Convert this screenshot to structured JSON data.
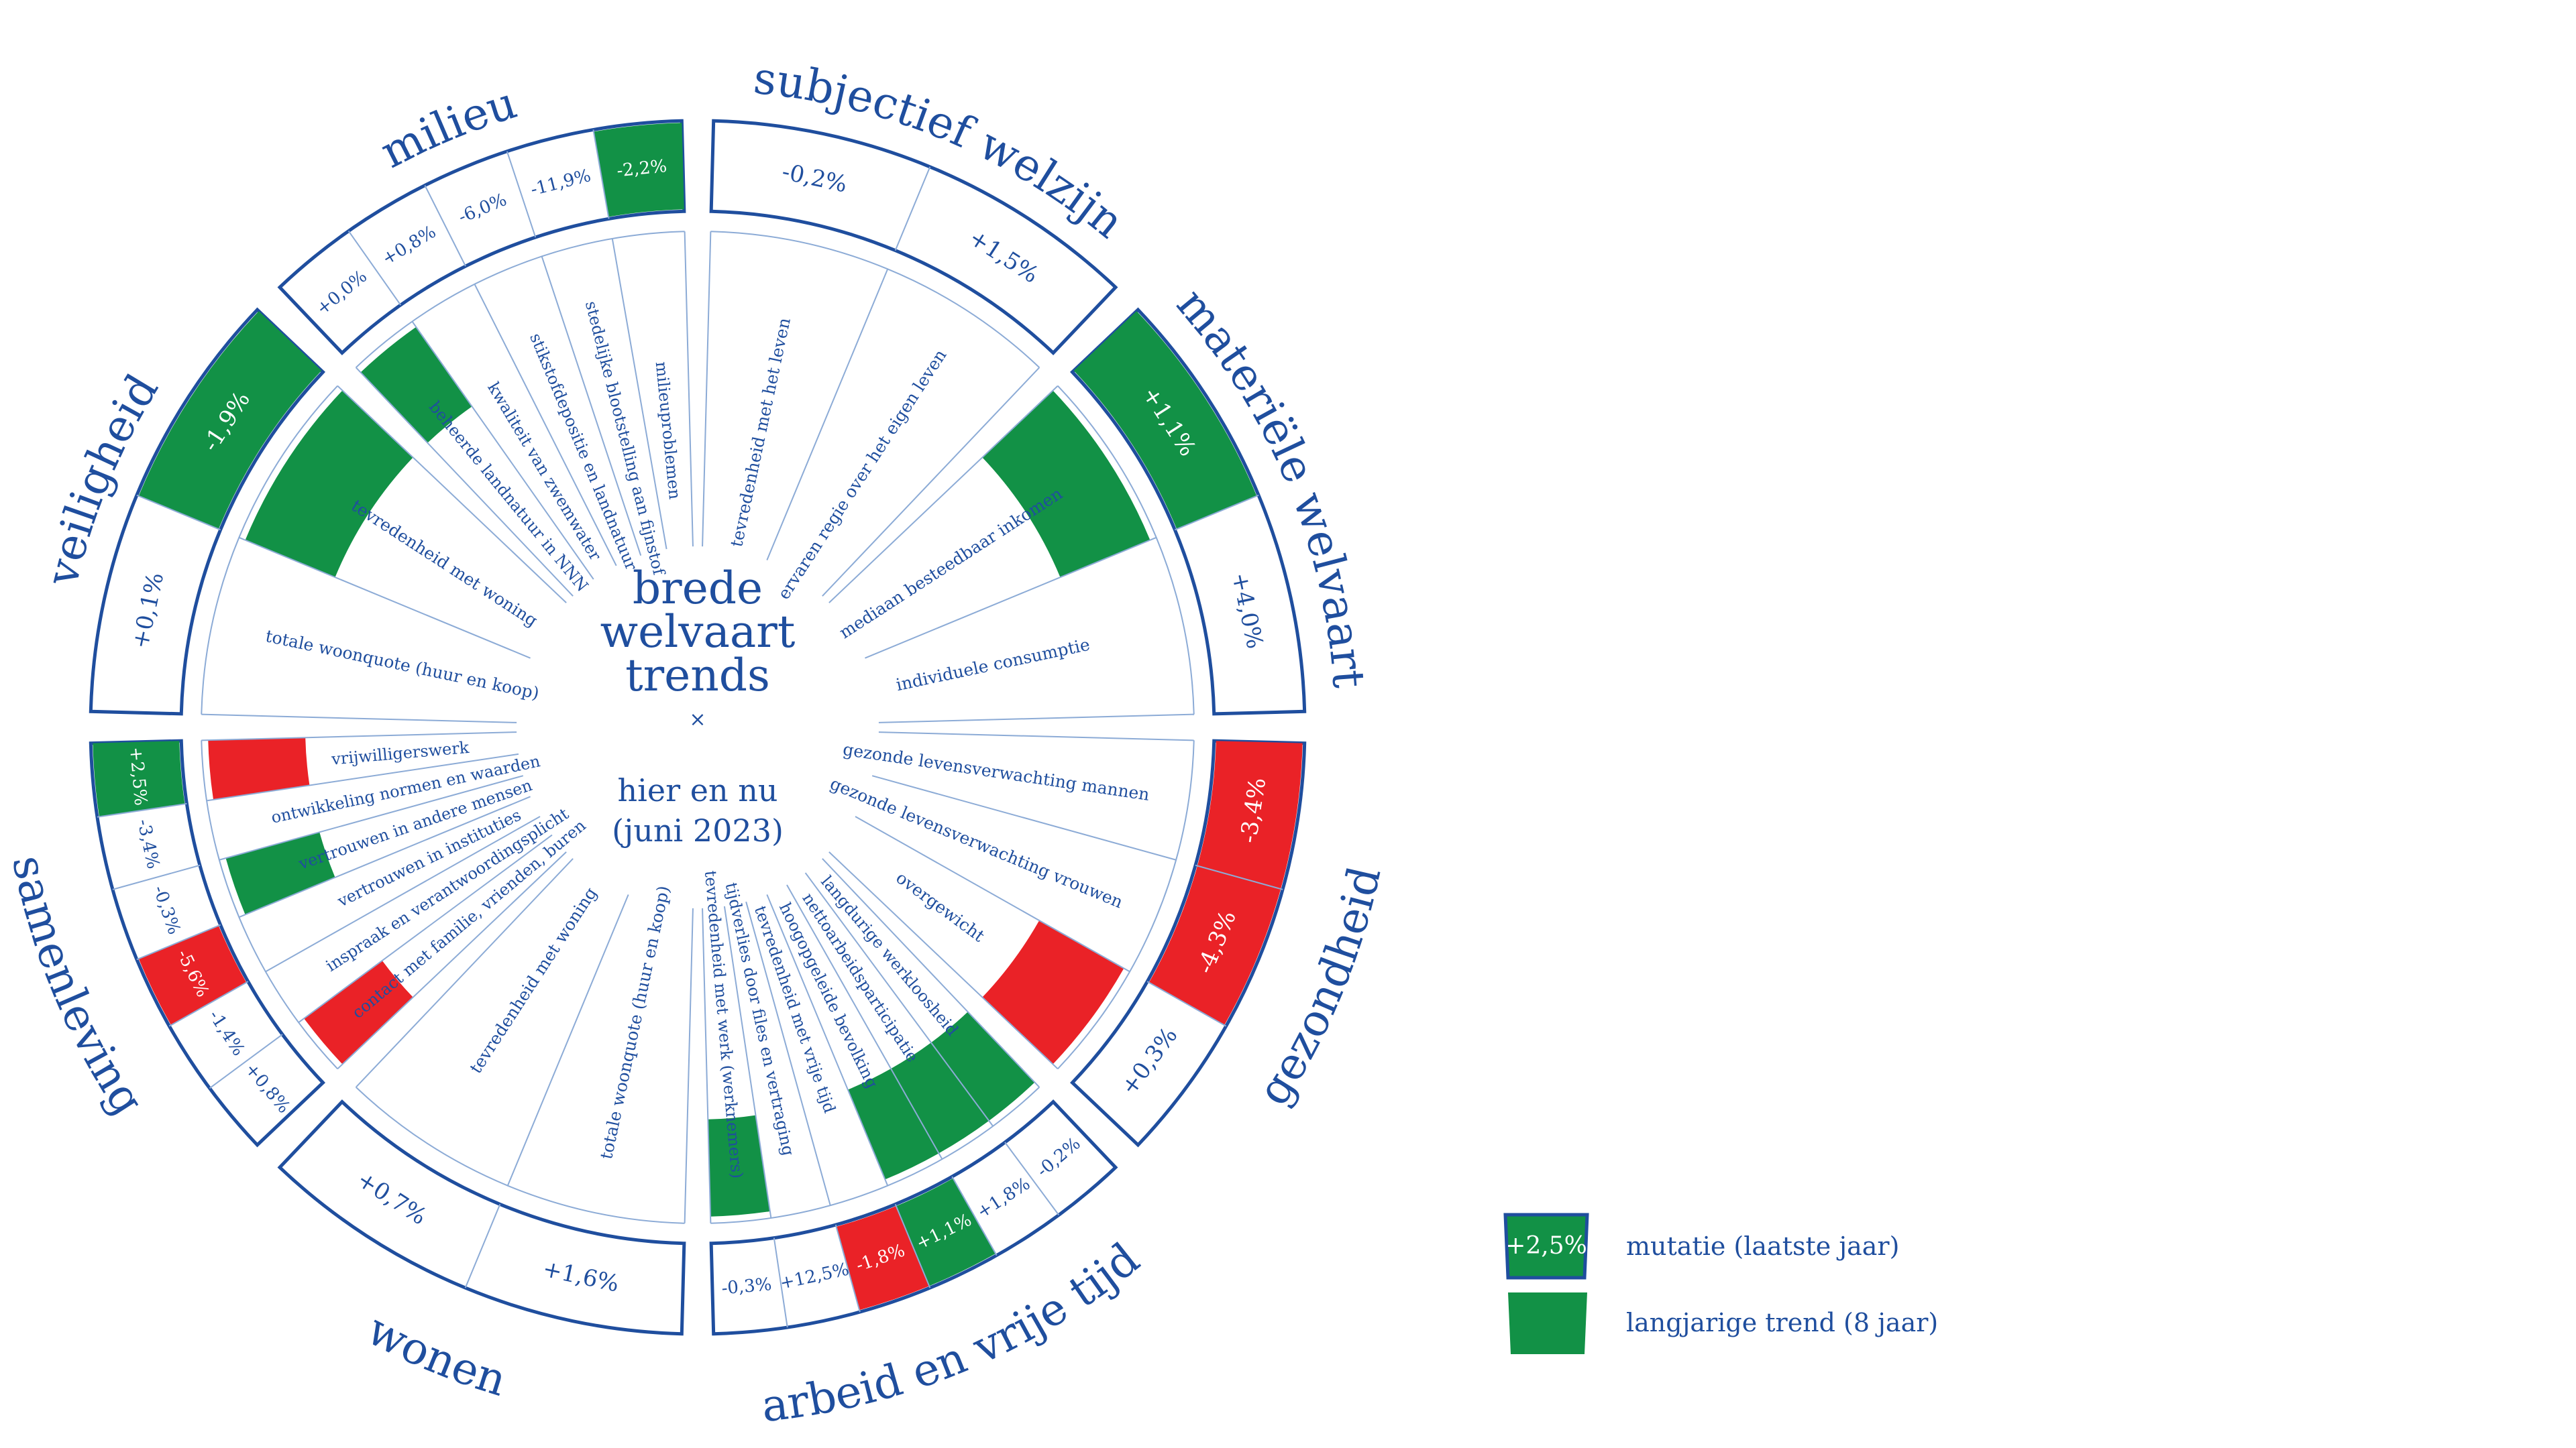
{
  "center": {
    "title": [
      "brede",
      "welvaart",
      "trends"
    ],
    "separator": "×",
    "subtitle": [
      "hier en nu",
      "(juni 2023)"
    ]
  },
  "colors": {
    "ink": "#1f4e9e",
    "green": "#129146",
    "red": "#ea2227",
    "line": "#8cabd6",
    "white": "#ffffff"
  },
  "legend": {
    "sample_value": "+2,5%",
    "mutation_label": "mutatie (laatste jaar)",
    "trend_label": "langjarige trend (8 jaar)"
  },
  "themes": [
    {
      "name": "subjectief welzijn",
      "indicators": [
        {
          "label": "tevredenheid met het leven",
          "value": "-0,2%",
          "mutation": "none",
          "trend": "none"
        },
        {
          "label": "ervaren regie over het eigen leven",
          "value": "+1,5%",
          "mutation": "none",
          "trend": "none"
        }
      ]
    },
    {
      "name": "materiële welvaart",
      "indicators": [
        {
          "label": "mediaan besteedbaar inkomen",
          "value": "+1,1%",
          "mutation": "green",
          "trend": "green"
        },
        {
          "label": "individuele consumptie",
          "value": "+4,0%",
          "mutation": "none",
          "trend": "none"
        }
      ]
    },
    {
      "name": "gezondheid",
      "indicators": [
        {
          "label": "gezonde levensverwachting mannen",
          "value": "-3,4%",
          "mutation": "red",
          "trend": "none"
        },
        {
          "label": "gezonde levensverwachting vrouwen",
          "value": "-4,3%",
          "mutation": "red",
          "trend": "none"
        },
        {
          "label": "overgewicht",
          "value": "+0,3%",
          "mutation": "none",
          "trend": "red"
        }
      ]
    },
    {
      "name": "arbeid en vrije tijd",
      "indicators": [
        {
          "label": "langdurige werkloosheid",
          "value": "-0,2%",
          "mutation": "none",
          "trend": "green"
        },
        {
          "label": "nettoarbeidsparticipatie",
          "value": "+1,8%",
          "mutation": "none",
          "trend": "green"
        },
        {
          "label": "hoogopgeleide bevolking",
          "value": "+1,1%",
          "mutation": "green",
          "trend": "green"
        },
        {
          "label": "tevredenheid met vrije tijd",
          "value": "-1,8%",
          "mutation": "red",
          "trend": "none"
        },
        {
          "label": "tijdverlies door files en vertraging",
          "value": "+12,5%",
          "mutation": "none",
          "trend": "none"
        },
        {
          "label": "tevredenheid met werk (werknemers)",
          "value": "-0,3%",
          "mutation": "none",
          "trend": "green"
        }
      ]
    },
    {
      "name": "wonen",
      "indicators": [
        {
          "label": "totale woonquote (huur en koop)",
          "value": "+1,6%",
          "mutation": "none",
          "trend": "none"
        },
        {
          "label": "tevredenheid met woning",
          "value": "+0,7%",
          "mutation": "none",
          "trend": "none"
        }
      ]
    },
    {
      "name": "samenleving",
      "indicators": [
        {
          "label": "contact met familie, vrienden, buren",
          "value": "+0,8%",
          "mutation": "none",
          "trend": "red"
        },
        {
          "label": "inspraak en verantwoordingsplicht",
          "value": "-1,4%",
          "mutation": "none",
          "trend": "none"
        },
        {
          "label": "vertrouwen in instituties",
          "value": "-5,6%",
          "mutation": "red",
          "trend": "none"
        },
        {
          "label": "vertrouwen in andere mensen",
          "value": "-0,3%",
          "mutation": "none",
          "trend": "green"
        },
        {
          "label": "ontwikkeling normen en waarden",
          "value": "-3,4%",
          "mutation": "none",
          "trend": "none"
        },
        {
          "label": "vrijwilligerswerk",
          "value": "+2,5%",
          "mutation": "green",
          "trend": "red"
        }
      ]
    },
    {
      "name": "veiligheid",
      "indicators": [
        {
          "label": "totale woonquote (huur en koop)",
          "value": "+0,1%",
          "mutation": "none",
          "trend": "none"
        },
        {
          "label": "tevredenheid met woning",
          "value": "-1,9%",
          "mutation": "green",
          "trend": "green"
        }
      ]
    },
    {
      "name": "milieu",
      "indicators": [
        {
          "label": "beheerde landnatuur in NNN",
          "value": "+0,0%",
          "mutation": "none",
          "trend": "green"
        },
        {
          "label": "kwaliteit van zwemwater",
          "value": "+0,8%",
          "mutation": "none",
          "trend": "none"
        },
        {
          "label": "stikstofdepositie en landnatuur",
          "value": "-6,0%",
          "mutation": "none",
          "trend": "none"
        },
        {
          "label": "stedelijke blootstelling aan fijnstof",
          "value": "-11,9%",
          "mutation": "none",
          "trend": "none"
        },
        {
          "label": "milieuproblemen",
          "value": "-2,2%",
          "mutation": "green",
          "trend": "none"
        }
      ]
    }
  ]
}
